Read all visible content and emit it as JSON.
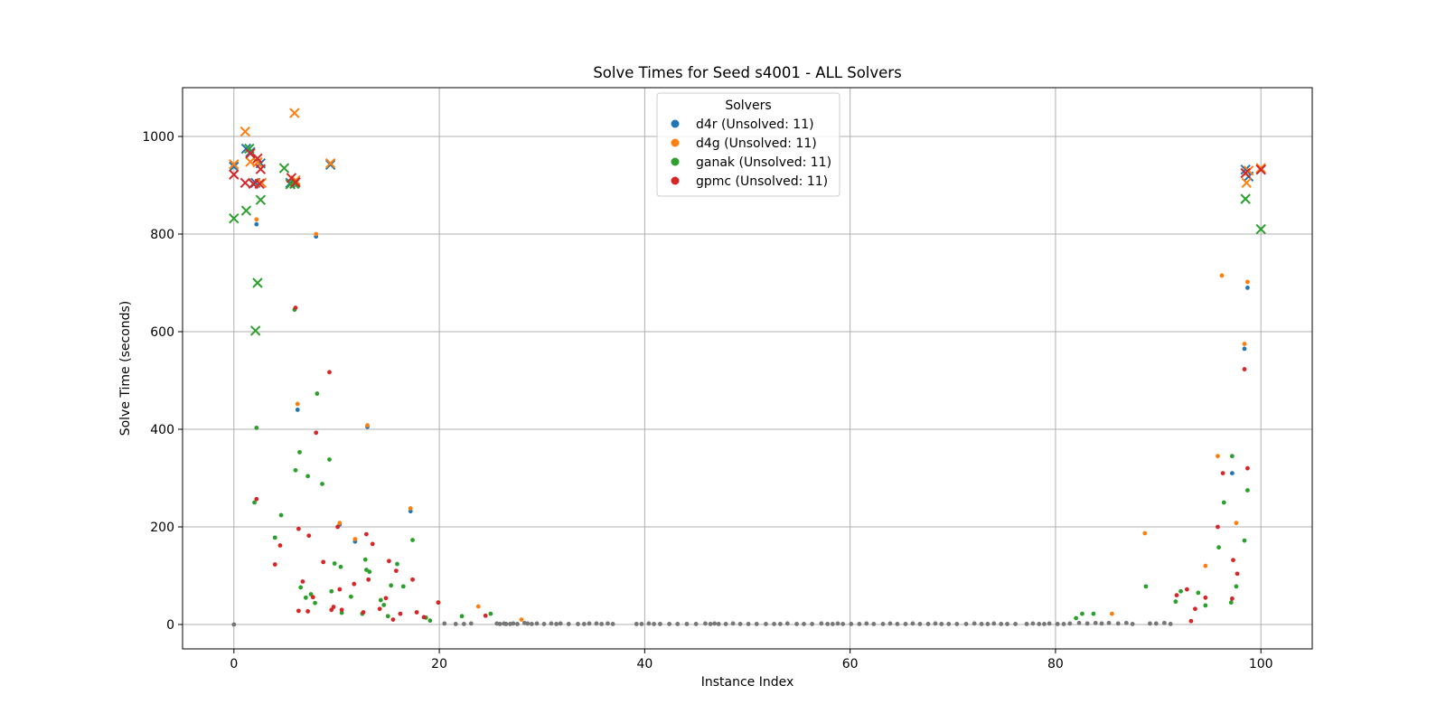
{
  "chart_data": {
    "type": "scatter",
    "title": "Solve Times for Seed s4001 - ALL Solvers",
    "xlabel": "Instance Index",
    "ylabel": "Solve Time (seconds)",
    "xlim": [
      -5,
      105
    ],
    "ylim": [
      -50,
      1100
    ],
    "xticks": [
      0,
      20,
      40,
      60,
      80,
      100
    ],
    "yticks": [
      0,
      200,
      400,
      600,
      800,
      1000
    ],
    "grid": true,
    "legend": {
      "title": "Solvers",
      "placement": "upper-center"
    },
    "markers": {
      "solved": "dot",
      "unsolved": "x"
    },
    "series": [
      {
        "name": "d4r (Unsolved: 11)",
        "color": "#1f77b4",
        "solved": [
          [
            2.2,
            820
          ],
          [
            6.2,
            440
          ],
          [
            8.0,
            795
          ],
          [
            10.3,
            205
          ],
          [
            11.8,
            170
          ],
          [
            13.0,
            405
          ],
          [
            17.2,
            232
          ],
          [
            98.4,
            565
          ],
          [
            98.7,
            690
          ],
          [
            97.2,
            310
          ]
        ],
        "unsolved": [
          [
            0,
            938
          ],
          [
            1.2,
            975
          ],
          [
            1.6,
            968
          ],
          [
            2.1,
            905
          ],
          [
            2.6,
            945
          ],
          [
            5.5,
            905
          ],
          [
            5.9,
            903
          ],
          [
            9.4,
            942
          ],
          [
            98.5,
            932
          ],
          [
            98.8,
            918
          ],
          [
            100,
            932
          ]
        ]
      },
      {
        "name": "d4g (Unsolved: 11)",
        "color": "#ff7f0e",
        "solved": [
          [
            2.2,
            830
          ],
          [
            6.2,
            452
          ],
          [
            8.0,
            800
          ],
          [
            10.3,
            208
          ],
          [
            11.8,
            175
          ],
          [
            13.0,
            408
          ],
          [
            17.2,
            238
          ],
          [
            19.9,
            45
          ],
          [
            23.8,
            37
          ],
          [
            28.0,
            10
          ],
          [
            85.5,
            22
          ],
          [
            88.7,
            187
          ],
          [
            94.6,
            120
          ],
          [
            95.8,
            345
          ],
          [
            96.2,
            715
          ],
          [
            97.6,
            208
          ],
          [
            98.4,
            575
          ],
          [
            98.7,
            702
          ]
        ],
        "unsolved": [
          [
            0,
            943
          ],
          [
            1.1,
            1010
          ],
          [
            1.6,
            948
          ],
          [
            2.3,
            947
          ],
          [
            2.7,
            905
          ],
          [
            5.9,
            1048
          ],
          [
            6.0,
            910
          ],
          [
            9.4,
            945
          ],
          [
            98.6,
            905
          ],
          [
            98.8,
            930
          ],
          [
            100,
            935
          ]
        ]
      },
      {
        "name": "ganak (Unsolved: 11)",
        "color": "#2ca02c",
        "solved": [
          [
            2.0,
            250
          ],
          [
            2.2,
            403
          ],
          [
            4.0,
            178
          ],
          [
            4.6,
            224
          ],
          [
            5.9,
            645
          ],
          [
            6.0,
            316
          ],
          [
            6.4,
            353
          ],
          [
            6.5,
            76
          ],
          [
            7.0,
            55
          ],
          [
            7.2,
            304
          ],
          [
            7.5,
            62
          ],
          [
            7.9,
            44
          ],
          [
            8.1,
            473
          ],
          [
            8.6,
            288
          ],
          [
            9.3,
            338
          ],
          [
            9.5,
            68
          ],
          [
            9.8,
            125
          ],
          [
            10.4,
            118
          ],
          [
            10.5,
            24
          ],
          [
            11.4,
            57
          ],
          [
            12.5,
            22
          ],
          [
            12.8,
            133
          ],
          [
            12.9,
            112
          ],
          [
            13.2,
            108
          ],
          [
            14.3,
            50
          ],
          [
            14.6,
            40
          ],
          [
            15.0,
            17
          ],
          [
            15.3,
            80
          ],
          [
            15.9,
            124
          ],
          [
            16.5,
            78
          ],
          [
            17.4,
            173
          ],
          [
            18.7,
            14
          ],
          [
            19.1,
            8
          ],
          [
            22.2,
            17
          ],
          [
            25.0,
            22
          ],
          [
            82.0,
            13
          ],
          [
            82.6,
            22
          ],
          [
            83.7,
            22
          ],
          [
            88.8,
            78
          ],
          [
            91.7,
            47
          ],
          [
            92.2,
            68
          ],
          [
            93.9,
            65
          ],
          [
            94.6,
            39
          ],
          [
            95.9,
            158
          ],
          [
            96.4,
            250
          ],
          [
            97.1,
            45
          ],
          [
            97.2,
            345
          ],
          [
            97.6,
            78
          ],
          [
            98.4,
            172
          ],
          [
            98.7,
            275
          ]
        ],
        "unsolved": [
          [
            0,
            832
          ],
          [
            1.2,
            848
          ],
          [
            1.5,
            975
          ],
          [
            2.1,
            602
          ],
          [
            2.3,
            700
          ],
          [
            2.6,
            870
          ],
          [
            4.9,
            935
          ],
          [
            5.5,
            902
          ],
          [
            5.9,
            903
          ],
          [
            98.5,
            872
          ],
          [
            100,
            810
          ]
        ]
      },
      {
        "name": "gpmc (Unsolved: 11)",
        "color": "#d62728",
        "solved": [
          [
            2.2,
            257
          ],
          [
            4.0,
            123
          ],
          [
            4.5,
            162
          ],
          [
            6.0,
            649
          ],
          [
            6.3,
            28
          ],
          [
            6.3,
            196
          ],
          [
            6.7,
            88
          ],
          [
            7.2,
            27
          ],
          [
            7.3,
            182
          ],
          [
            7.7,
            56
          ],
          [
            8.0,
            393
          ],
          [
            8.7,
            128
          ],
          [
            9.3,
            517
          ],
          [
            9.5,
            30
          ],
          [
            9.7,
            36
          ],
          [
            10.3,
            72
          ],
          [
            10.5,
            30
          ],
          [
            10.1,
            200
          ],
          [
            11.7,
            83
          ],
          [
            12.6,
            25
          ],
          [
            12.9,
            185
          ],
          [
            13.1,
            92
          ],
          [
            13.5,
            165
          ],
          [
            14.2,
            32
          ],
          [
            14.8,
            54
          ],
          [
            15.1,
            130
          ],
          [
            15.5,
            10
          ],
          [
            15.8,
            110
          ],
          [
            16.2,
            22
          ],
          [
            17.4,
            92
          ],
          [
            17.8,
            25
          ],
          [
            18.5,
            15
          ],
          [
            19.9,
            45
          ],
          [
            24.5,
            18
          ],
          [
            91.8,
            60
          ],
          [
            92.8,
            72
          ],
          [
            93.2,
            7
          ],
          [
            93.6,
            32
          ],
          [
            95.8,
            200
          ],
          [
            96.3,
            310
          ],
          [
            97.2,
            53
          ],
          [
            97.3,
            132
          ],
          [
            97.7,
            104
          ],
          [
            98.4,
            523
          ],
          [
            98.7,
            320
          ],
          [
            94.6,
            55
          ]
        ],
        "unsolved": [
          [
            0,
            922
          ],
          [
            1.1,
            905
          ],
          [
            1.6,
            965
          ],
          [
            1.9,
            903
          ],
          [
            2.3,
            955
          ],
          [
            2.5,
            903
          ],
          [
            2.6,
            933
          ],
          [
            5.6,
            915
          ],
          [
            6.0,
            906
          ],
          [
            98.5,
            925
          ],
          [
            100,
            932
          ]
        ]
      },
      {
        "name": "",
        "color": "#777777",
        "solved": [
          [
            0.0,
            0
          ],
          [
            20.5,
            2
          ],
          [
            21.6,
            1
          ],
          [
            22.4,
            1
          ],
          [
            23.1,
            2
          ],
          [
            25.6,
            2
          ],
          [
            25.9,
            1
          ],
          [
            26.3,
            2
          ],
          [
            26.5,
            1
          ],
          [
            26.9,
            1
          ],
          [
            27.2,
            2
          ],
          [
            27.6,
            1
          ],
          [
            28.3,
            3
          ],
          [
            28.6,
            2
          ],
          [
            29.0,
            1
          ],
          [
            29.5,
            2
          ],
          [
            30.2,
            1
          ],
          [
            30.9,
            2
          ],
          [
            31.4,
            1
          ],
          [
            31.8,
            2
          ],
          [
            32.6,
            1
          ],
          [
            33.5,
            1
          ],
          [
            34.1,
            1
          ],
          [
            34.6,
            2
          ],
          [
            35.3,
            2
          ],
          [
            35.8,
            1
          ],
          [
            36.4,
            2
          ],
          [
            36.9,
            1
          ],
          [
            39.2,
            1
          ],
          [
            39.7,
            1
          ],
          [
            40.4,
            2
          ],
          [
            40.9,
            1
          ],
          [
            41.5,
            1
          ],
          [
            42.4,
            1
          ],
          [
            43.2,
            1
          ],
          [
            44.1,
            1
          ],
          [
            45.0,
            1
          ],
          [
            45.9,
            2
          ],
          [
            46.4,
            1
          ],
          [
            46.8,
            2
          ],
          [
            47.2,
            1
          ],
          [
            47.9,
            1
          ],
          [
            48.6,
            2
          ],
          [
            49.3,
            1
          ],
          [
            50.1,
            1
          ],
          [
            50.9,
            1
          ],
          [
            51.8,
            1
          ],
          [
            52.6,
            1
          ],
          [
            53.2,
            1
          ],
          [
            53.9,
            2
          ],
          [
            54.8,
            1
          ],
          [
            55.5,
            1
          ],
          [
            56.3,
            1
          ],
          [
            57.2,
            2
          ],
          [
            57.8,
            1
          ],
          [
            58.3,
            1
          ],
          [
            58.8,
            2
          ],
          [
            59.3,
            1
          ],
          [
            60.1,
            1
          ],
          [
            60.9,
            1
          ],
          [
            61.6,
            2
          ],
          [
            62.3,
            1
          ],
          [
            63.2,
            1
          ],
          [
            63.9,
            2
          ],
          [
            64.6,
            1
          ],
          [
            65.4,
            1
          ],
          [
            66.1,
            2
          ],
          [
            66.8,
            1
          ],
          [
            67.6,
            1
          ],
          [
            68.3,
            2
          ],
          [
            68.9,
            1
          ],
          [
            69.6,
            1
          ],
          [
            70.4,
            1
          ],
          [
            71.3,
            1
          ],
          [
            72.1,
            2
          ],
          [
            72.8,
            1
          ],
          [
            73.4,
            1
          ],
          [
            74.0,
            2
          ],
          [
            74.7,
            1
          ],
          [
            75.3,
            1
          ],
          [
            76.1,
            1
          ],
          [
            77.2,
            1
          ],
          [
            77.8,
            2
          ],
          [
            78.4,
            1
          ],
          [
            78.9,
            1
          ],
          [
            79.4,
            2
          ],
          [
            80.2,
            1
          ],
          [
            80.8,
            1
          ],
          [
            81.4,
            2
          ],
          [
            82.3,
            3
          ],
          [
            83.1,
            2
          ],
          [
            83.9,
            3
          ],
          [
            84.5,
            2
          ],
          [
            85.2,
            3
          ],
          [
            86.1,
            2
          ],
          [
            86.9,
            3
          ],
          [
            87.5,
            1
          ],
          [
            89.2,
            2
          ],
          [
            89.8,
            2
          ],
          [
            90.6,
            3
          ],
          [
            91.2,
            1
          ]
        ]
      }
    ]
  }
}
